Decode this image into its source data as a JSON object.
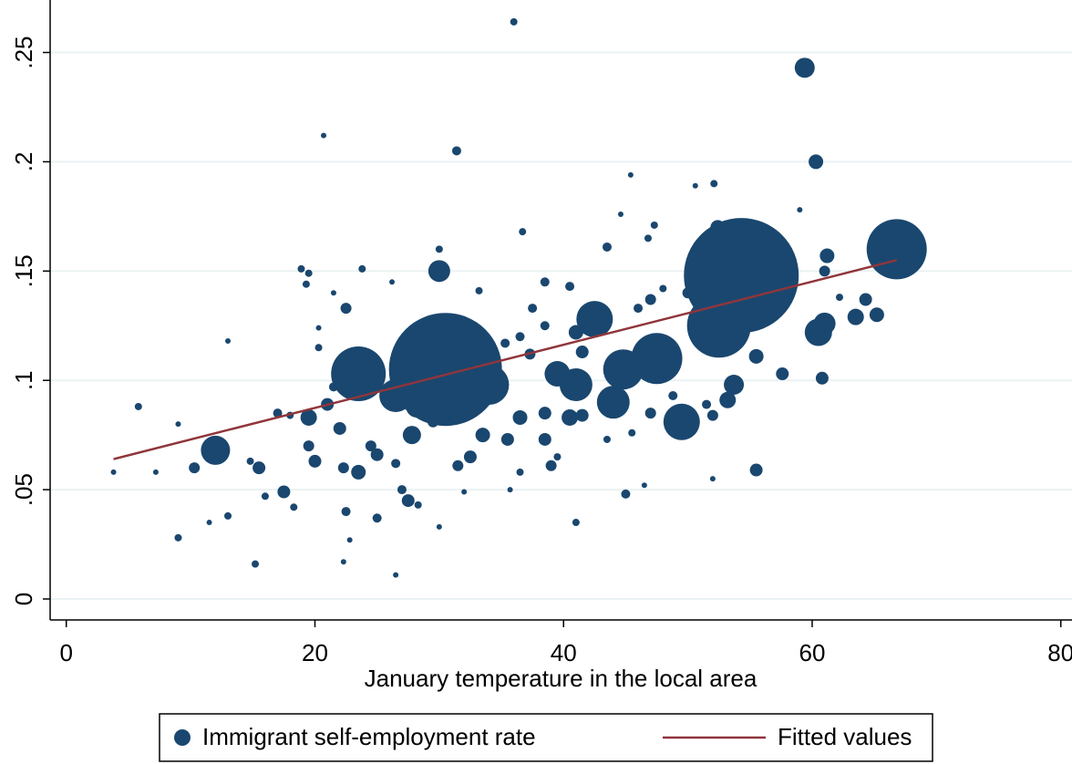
{
  "chart_data": {
    "type": "scatter",
    "x_label": "January temperature in the local area",
    "xlim": [
      -1.3,
      80.9
    ],
    "ylim": [
      -0.0096,
      0.274
    ],
    "xticks": [
      0,
      20,
      40,
      60,
      80
    ],
    "yticks": [
      0,
      {
        "value": 0.05,
        "label": ".05"
      },
      {
        "value": 0.1,
        "label": ".1"
      },
      {
        "value": 0.15,
        "label": ".15"
      },
      {
        "value": 0.2,
        "label": ".2"
      },
      {
        "value": 0.25,
        "label": ".25"
      }
    ],
    "grid": true,
    "legend": "bottom",
    "series": [
      {
        "name": "Immigrant self-employment rate",
        "type": "scatter",
        "color": "#1a476f",
        "x": [
          30.5,
          54.3,
          66.8,
          23.5,
          52.5,
          47.5,
          44.8,
          44,
          49.5,
          42.5,
          41,
          39.5,
          34,
          26.5,
          30,
          12,
          59.4,
          60.3,
          60.5,
          61,
          61.2,
          61,
          60.8,
          63.5,
          64.3,
          65.2,
          62.2,
          57.6,
          55.5,
          55.5,
          53.7,
          53.2,
          52.1,
          52.4,
          50.6,
          48.8,
          47,
          47.3,
          46.8,
          45.4,
          43.5,
          36,
          31.4,
          20.7,
          30,
          36.7,
          28.2,
          27.8,
          22.5,
          22,
          21,
          19.5,
          19.5,
          20,
          22.3,
          23.5,
          22.5,
          24.5,
          25,
          25,
          26.5,
          27.5,
          26.5,
          27,
          28.3,
          30,
          29.5,
          31.5,
          32.5,
          33.5,
          35.5,
          36.5,
          38.5,
          39,
          38.5,
          40.5,
          41.5,
          41,
          45,
          45.5,
          47,
          49.5,
          52,
          51.5,
          52,
          59,
          50,
          48,
          46,
          41,
          41.5,
          40.5,
          38.5,
          38.5,
          37.5,
          36.5,
          37.3,
          35.3,
          33.2,
          34.5,
          17,
          18,
          17.5,
          15.5,
          15.2,
          16,
          18.3,
          14.8,
          13,
          11.5,
          9,
          10.3,
          9,
          7.2,
          5.8,
          3.8,
          13,
          18.9,
          19.5,
          19.3,
          20.3,
          21.5,
          23.8,
          26.2,
          21.5,
          20.3,
          22.3,
          22.8,
          32,
          35.7,
          39.5,
          44.6,
          36.5,
          43.5,
          46.5
        ],
        "values": [
          0.105,
          0.148,
          0.16,
          0.103,
          0.125,
          0.11,
          0.105,
          0.09,
          0.081,
          0.128,
          0.098,
          0.103,
          0.098,
          0.093,
          0.15,
          0.068,
          0.243,
          0.2,
          0.122,
          0.126,
          0.157,
          0.15,
          0.101,
          0.129,
          0.137,
          0.13,
          0.138,
          0.103,
          0.111,
          0.059,
          0.098,
          0.091,
          0.19,
          0.17,
          0.189,
          0.093,
          0.137,
          0.171,
          0.165,
          0.194,
          0.161,
          0.264,
          0.205,
          0.212,
          0.16,
          0.168,
          0.088,
          0.075,
          0.133,
          0.078,
          0.089,
          0.083,
          0.07,
          0.063,
          0.06,
          0.058,
          0.04,
          0.07,
          0.066,
          0.037,
          0.062,
          0.045,
          0.011,
          0.05,
          0.043,
          0.033,
          0.081,
          0.061,
          0.065,
          0.075,
          0.073,
          0.083,
          0.073,
          0.061,
          0.085,
          0.083,
          0.084,
          0.035,
          0.048,
          0.076,
          0.085,
          0.078,
          0.084,
          0.089,
          0.055,
          0.178,
          0.14,
          0.142,
          0.133,
          0.122,
          0.113,
          0.143,
          0.145,
          0.125,
          0.133,
          0.12,
          0.112,
          0.117,
          0.141,
          0.108,
          0.085,
          0.084,
          0.049,
          0.06,
          0.016,
          0.047,
          0.042,
          0.063,
          0.038,
          0.035,
          0.028,
          0.06,
          0.08,
          0.058,
          0.088,
          0.058,
          0.118,
          0.151,
          0.149,
          0.144,
          0.115,
          0.14,
          0.151,
          0.145,
          0.097,
          0.124,
          0.017,
          0.027,
          0.049,
          0.05,
          0.065,
          0.176,
          0.058,
          0.073,
          0.052
        ],
        "sizes": [
          3844,
          3969,
          1089,
          900,
          1225,
          784,
          484,
          324,
          400,
          400,
          324,
          196,
          484,
          324,
          144,
          256,
          121,
          64,
          225,
          144,
          64,
          36,
          49,
          81,
          49,
          64,
          16,
          49,
          64,
          49,
          121,
          81,
          16,
          64,
          9,
          25,
          36,
          16,
          16,
          9,
          25,
          16,
          25,
          9,
          16,
          16,
          144,
          100,
          36,
          49,
          49,
          81,
          36,
          49,
          36,
          64,
          25,
          36,
          49,
          25,
          25,
          49,
          9,
          25,
          16,
          9,
          36,
          36,
          49,
          64,
          49,
          64,
          49,
          36,
          49,
          81,
          49,
          16,
          25,
          16,
          36,
          25,
          36,
          25,
          9,
          9,
          36,
          16,
          25,
          64,
          49,
          25,
          25,
          25,
          25,
          25,
          36,
          25,
          16,
          36,
          25,
          16,
          49,
          49,
          16,
          16,
          16,
          16,
          16,
          9,
          16,
          36,
          9,
          9,
          16,
          9,
          9,
          16,
          16,
          16,
          16,
          9,
          16,
          9,
          25,
          9,
          9,
          9,
          9,
          9,
          16,
          9,
          16,
          16,
          9
        ]
      },
      {
        "name": "Fitted values",
        "type": "line",
        "color": "#90353b",
        "x": [
          3.8,
          66.8
        ],
        "values": [
          0.064,
          0.155
        ]
      }
    ]
  }
}
